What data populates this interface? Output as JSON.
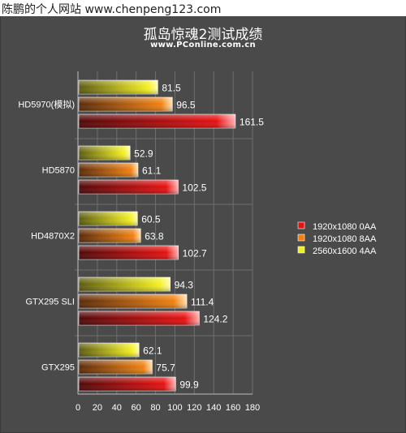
{
  "watermark": "陈鹏的个人网站  www.chenpeng123.com",
  "chart_data": {
    "type": "bar",
    "orientation": "horizontal",
    "title": "孤岛惊魂2测试成绩",
    "subtitle": "www.PConline.com.cn",
    "categories": [
      "HD5970(模拟)",
      "HD5870",
      "HD4870X2",
      "GTX295 SLI",
      "GTX295"
    ],
    "series": [
      {
        "name": "2560x1600 4AA",
        "color": "#f0f020",
        "values": [
          81.5,
          52.9,
          60.5,
          94.3,
          62.1
        ]
      },
      {
        "name": "1920x1080 8AA",
        "color": "#f08010",
        "values": [
          96.5,
          61.1,
          63.8,
          111.4,
          75.7
        ]
      },
      {
        "name": "1920x1080 0AA",
        "color": "#e81010",
        "values": [
          161.5,
          102.5,
          102.7,
          124.2,
          99.9
        ]
      }
    ],
    "legend_order": [
      "1920x1080 0AA",
      "1920x1080 8AA",
      "2560x1600 4AA"
    ],
    "xlim": [
      0,
      180
    ],
    "xticks": [
      0,
      20,
      40,
      60,
      80,
      100,
      120,
      140,
      160,
      180
    ],
    "grid": true,
    "legend_position": "right"
  }
}
